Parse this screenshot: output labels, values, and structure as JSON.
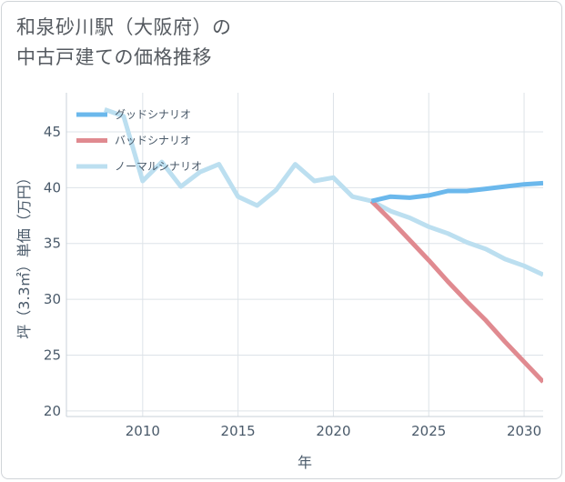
{
  "title": {
    "line1": "和泉砂川駅（大阪府）の",
    "line2": "中古戸建ての価格推移"
  },
  "chart_data": {
    "type": "line",
    "xlabel": "年",
    "ylabel": "坪（3.3㎡）単価（万円）",
    "xlim": [
      2006,
      2031
    ],
    "ylim": [
      19.5,
      48.5
    ],
    "xticks": [
      2010,
      2015,
      2020,
      2025,
      2030
    ],
    "yticks": [
      20,
      25,
      30,
      35,
      40,
      45
    ],
    "grid": true,
    "legend": "top-left",
    "series": [
      {
        "name": "グッドシナリオ",
        "color": "#6bb8ec",
        "width": 5,
        "x": [
          2022,
          2023,
          2024,
          2025,
          2026,
          2027,
          2028,
          2029,
          2030,
          2031
        ],
        "y": [
          38.8,
          39.2,
          39.1,
          39.3,
          39.7,
          39.7,
          39.9,
          40.1,
          40.3,
          40.4
        ]
      },
      {
        "name": "バッドシナリオ",
        "color": "#e08a90",
        "width": 5,
        "x": [
          2022,
          2023,
          2024,
          2025,
          2026,
          2027,
          2028,
          2029,
          2030,
          2031
        ],
        "y": [
          38.8,
          37.1,
          35.3,
          33.5,
          31.6,
          29.8,
          28.1,
          26.2,
          24.4,
          22.6
        ]
      },
      {
        "name": "ノーマルシナリオ",
        "color": "#bcdff0",
        "width": 5,
        "x": [
          2008,
          2009,
          2010,
          2011,
          2012,
          2013,
          2014,
          2015,
          2016,
          2017,
          2018,
          2019,
          2020,
          2021,
          2022,
          2023,
          2024,
          2025,
          2026,
          2027,
          2028,
          2029,
          2030,
          2031
        ],
        "y": [
          47.0,
          46.4,
          40.6,
          42.3,
          40.1,
          41.4,
          42.1,
          39.2,
          38.4,
          39.8,
          42.1,
          40.6,
          40.9,
          39.2,
          38.8,
          37.9,
          37.3,
          36.5,
          35.9,
          35.1,
          34.5,
          33.6,
          33.0,
          32.2
        ]
      }
    ]
  }
}
